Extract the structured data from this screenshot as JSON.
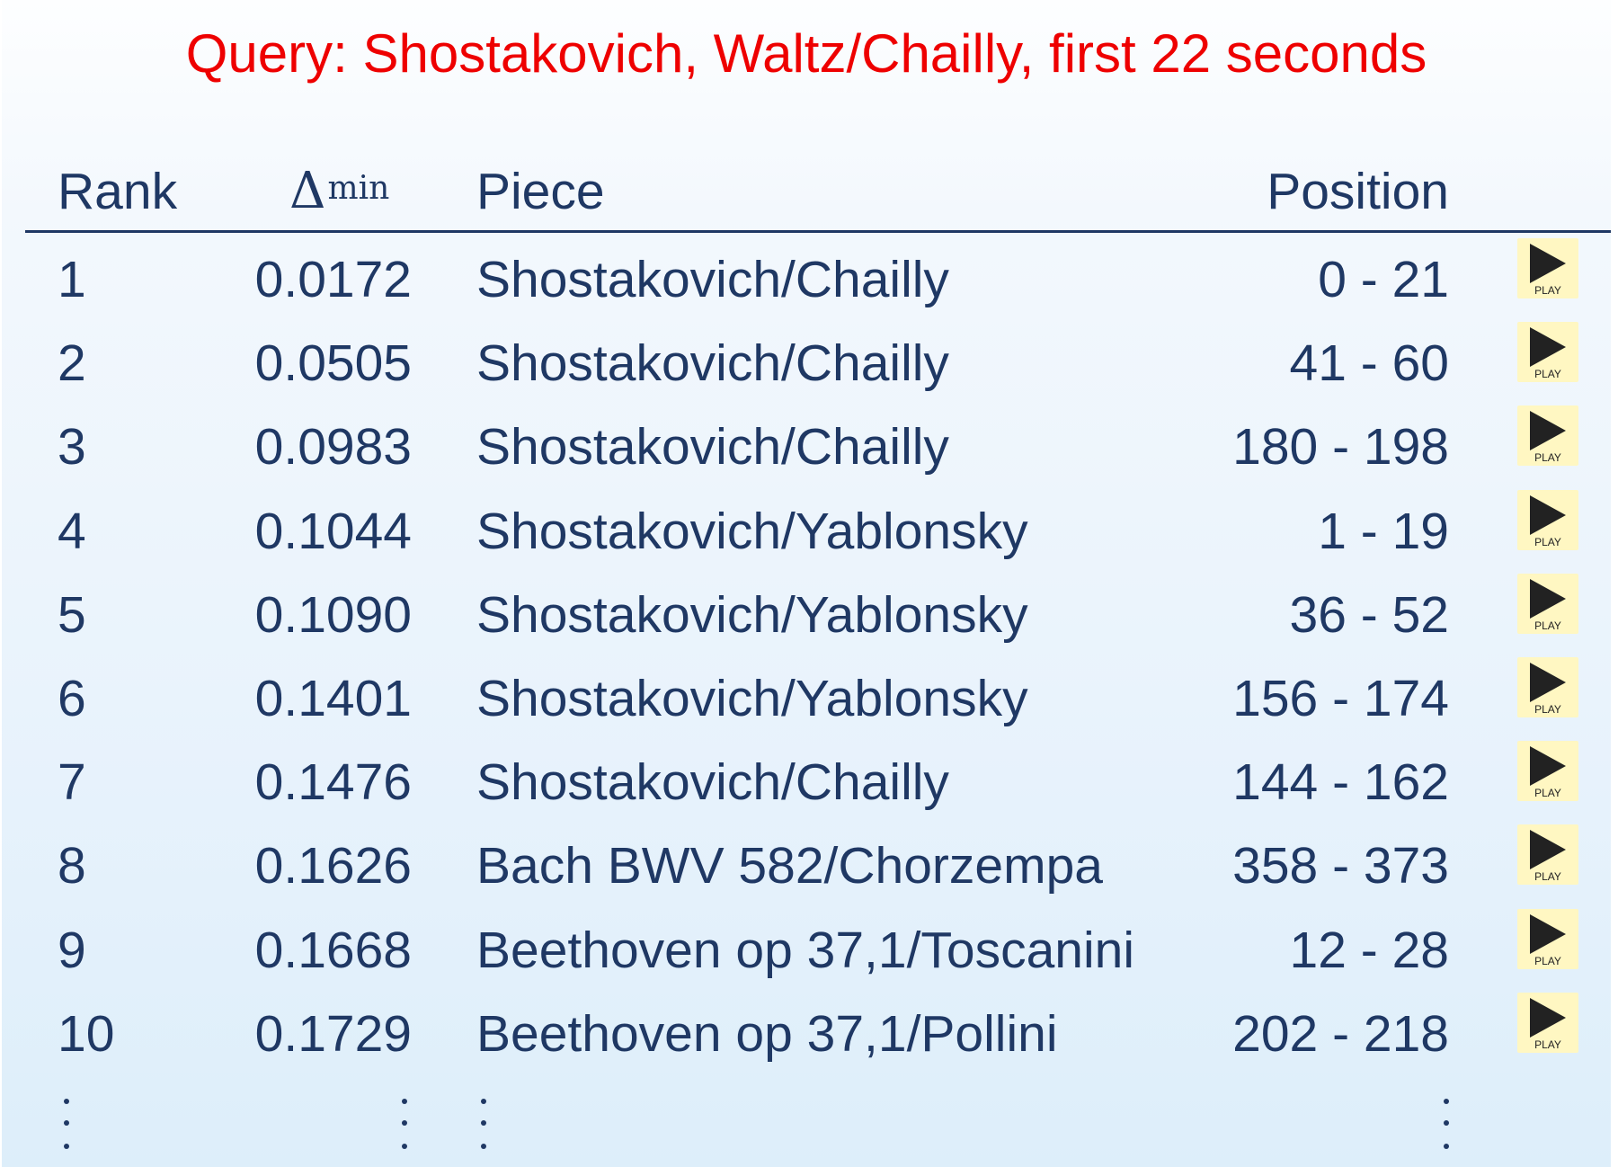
{
  "title": "Query: Shostakovich, Waltz/Chailly, first 22 seconds",
  "header": {
    "rank": "Rank",
    "delta_symbol": "Δ",
    "delta_superscript": "min",
    "piece": "Piece",
    "position": "Position"
  },
  "play_label": "PLAY",
  "rows": [
    {
      "rank": "1",
      "delta": "0.0172",
      "piece": "Shostakovich/Chailly",
      "position": "0 - 21"
    },
    {
      "rank": "2",
      "delta": "0.0505",
      "piece": "Shostakovich/Chailly",
      "position": "41 - 60"
    },
    {
      "rank": "3",
      "delta": "0.0983",
      "piece": "Shostakovich/Chailly",
      "position": "180 - 198"
    },
    {
      "rank": "4",
      "delta": "0.1044",
      "piece": "Shostakovich/Yablonsky",
      "position": "1 - 19"
    },
    {
      "rank": "5",
      "delta": "0.1090",
      "piece": "Shostakovich/Yablonsky",
      "position": "36 - 52"
    },
    {
      "rank": "6",
      "delta": "0.1401",
      "piece": "Shostakovich/Yablonsky",
      "position": "156 - 174"
    },
    {
      "rank": "7",
      "delta": "0.1476",
      "piece": "Shostakovich/Chailly",
      "position": "144 - 162"
    },
    {
      "rank": "8",
      "delta": "0.1626",
      "piece": "Bach BWV 582/Chorzempa",
      "position": "358 - 373"
    },
    {
      "rank": "9",
      "delta": "0.1668",
      "piece": "Beethoven op 37,1/Toscanini",
      "position": "12 - 28"
    },
    {
      "rank": "10",
      "delta": "0.1729",
      "piece": "Beethoven op 37,1/Pollini",
      "position": "202 - 218"
    }
  ],
  "colors": {
    "title": "#ee0000",
    "text": "#1f3864",
    "play_background": "#fff7c2",
    "play_icon": "#222222"
  }
}
